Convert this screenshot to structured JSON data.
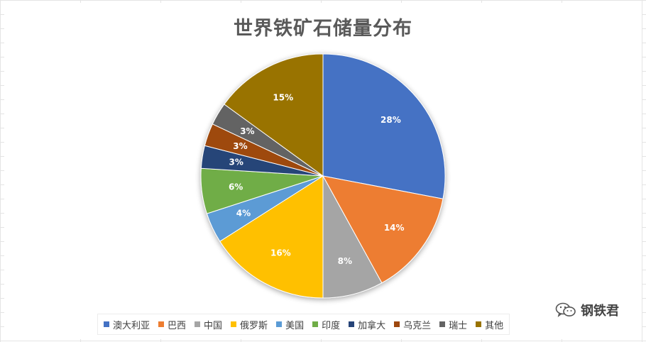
{
  "chart_data": {
    "type": "pie",
    "title": "世界铁矿石储量分布",
    "legend_position": "bottom",
    "slices": [
      {
        "name": "澳大利亚",
        "value": 28,
        "label": "28%",
        "color": "#4472C4"
      },
      {
        "name": "巴西",
        "value": 14,
        "label": "14%",
        "color": "#ED7D31"
      },
      {
        "name": "中国",
        "value": 8,
        "label": "8%",
        "color": "#A5A5A5"
      },
      {
        "name": "俄罗斯",
        "value": 16,
        "label": "16%",
        "color": "#FFC000"
      },
      {
        "name": "美国",
        "value": 4,
        "label": "4%",
        "color": "#5B9BD5"
      },
      {
        "name": "印度",
        "value": 6,
        "label": "6%",
        "color": "#70AD47"
      },
      {
        "name": "加拿大",
        "value": 3,
        "label": "3%",
        "color": "#264478"
      },
      {
        "name": "乌克兰",
        "value": 3,
        "label": "3%",
        "color": "#9E480E"
      },
      {
        "name": "瑞士",
        "value": 3,
        "label": "3%",
        "color": "#636363"
      },
      {
        "name": "其他",
        "value": 15,
        "label": "15%",
        "color": "#997300"
      }
    ]
  },
  "watermark": {
    "text": "钢铁君",
    "icon": "wechat-icon"
  }
}
